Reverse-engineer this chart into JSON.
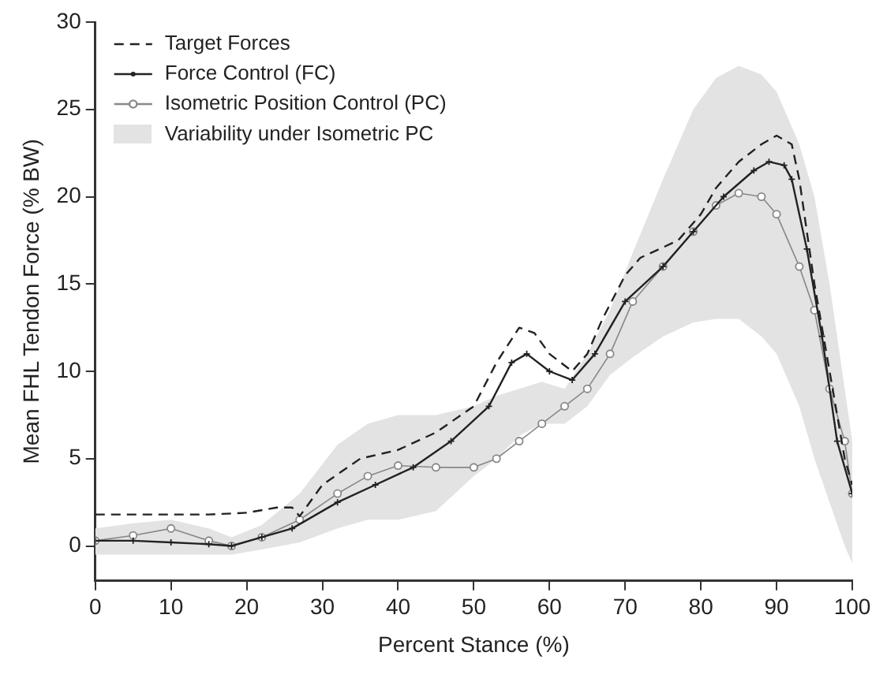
{
  "chart_data": {
    "type": "line",
    "xlabel": "Percent Stance (%)",
    "ylabel": "Mean FHL Tendon Force (% BW)",
    "xlim": [
      0,
      100
    ],
    "xticks": [
      0,
      10,
      20,
      30,
      40,
      50,
      60,
      70,
      80,
      90,
      100
    ],
    "ylim": [
      -2,
      30
    ],
    "yticks": [
      0,
      5,
      10,
      15,
      20,
      25,
      30
    ],
    "grid": false,
    "legend": "top left",
    "annotations": [
      "Variability under Isometric PC"
    ],
    "series": [
      {
        "name": "Target Forces",
        "color": "#222222",
        "line_style": "dashed",
        "marker": "none",
        "x": [
          0,
          5,
          10,
          15,
          20,
          24,
          26,
          27,
          30,
          35,
          40,
          45,
          50,
          53,
          56,
          58,
          60,
          63,
          65,
          67,
          70,
          72,
          77,
          80,
          82,
          85,
          88,
          90,
          92,
          93,
          95,
          97,
          99,
          100
        ],
        "values": [
          1.8,
          1.8,
          1.8,
          1.8,
          1.9,
          2.2,
          2.2,
          1.7,
          3.5,
          5,
          5.5,
          6.5,
          8,
          10.5,
          12.5,
          12.2,
          11,
          10,
          11,
          13,
          15.5,
          16.5,
          17.5,
          19,
          20.5,
          22,
          23,
          23.5,
          23,
          21,
          15,
          10,
          5,
          3.5
        ]
      },
      {
        "name": "Force Control (FC)",
        "color": "#222222",
        "line_style": "solid",
        "marker": "cross",
        "x": [
          0,
          5,
          10,
          15,
          18,
          22,
          26,
          32,
          37,
          42,
          47,
          52,
          55,
          57,
          60,
          63,
          66,
          70,
          75,
          79,
          83,
          87,
          89,
          91,
          92,
          94,
          96,
          98,
          100
        ],
        "values": [
          0.3,
          0.3,
          0.2,
          0.1,
          0,
          0.5,
          1,
          2.5,
          3.5,
          4.5,
          6,
          8,
          10.5,
          11,
          10,
          9.5,
          11,
          14,
          16,
          18,
          20,
          21.5,
          22,
          21.8,
          21,
          17,
          12,
          6,
          3
        ]
      },
      {
        "name": "Isometric Position Control (PC)",
        "color": "#888888",
        "line_style": "solid",
        "marker": "circle",
        "x": [
          0,
          5,
          10,
          15,
          18,
          22,
          27,
          32,
          36,
          40,
          45,
          50,
          53,
          56,
          59,
          62,
          65,
          68,
          71,
          75,
          79,
          82,
          85,
          88,
          90,
          93,
          95,
          97,
          99,
          100
        ],
        "values": [
          0.3,
          0.6,
          1,
          0.3,
          0,
          0.5,
          1.5,
          3,
          4,
          4.6,
          4.5,
          4.5,
          5,
          6,
          7,
          8,
          9,
          11,
          14,
          16,
          18,
          19.5,
          20.2,
          20,
          19,
          16,
          13.5,
          9,
          6,
          3
        ],
        "lower": [
          -0.5,
          -0.5,
          -0.5,
          -0.5,
          -0.5,
          -0.2,
          0.2,
          1,
          1.5,
          1.5,
          2,
          4,
          5,
          6.3,
          7,
          7,
          8,
          9.8,
          10.8,
          12,
          12.8,
          13,
          13,
          12,
          11,
          8,
          5,
          2.5,
          0,
          -1
        ],
        "upper": [
          1,
          1.3,
          1.5,
          1,
          0.5,
          1.2,
          3,
          5.8,
          7,
          7.5,
          7.5,
          8,
          8.6,
          9,
          9.4,
          9,
          11,
          13.5,
          16.8,
          21,
          25,
          26.8,
          27.5,
          27,
          26,
          23,
          20,
          15,
          9,
          6
        ]
      }
    ]
  }
}
